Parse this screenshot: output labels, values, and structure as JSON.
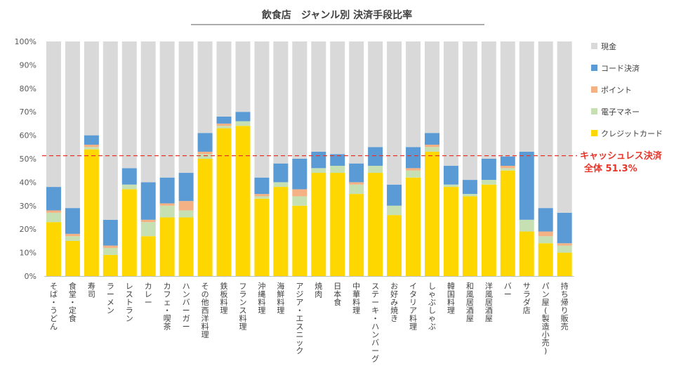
{
  "chart_data": {
    "type": "bar",
    "stacked": true,
    "title": "飲食店　ジャンル別 決済手段比率",
    "categories": [
      "そば・うどん",
      "食堂・定食",
      "寿司",
      "ラーメン",
      "レストラン",
      "カレー",
      "カフェ・喫茶",
      "ハンバーガー",
      "その他西洋料理",
      "鉄板料理",
      "フランス料理",
      "沖縄料理",
      "海鮮料理",
      "アジア・エスニック",
      "焼肉",
      "日本食",
      "中華料理",
      "ステーキ・ハンバーグ",
      "お好み焼き",
      "イタリア料理",
      "しゃぶしゃぶ",
      "韓国料理",
      "和風居酒屋",
      "洋風居酒屋",
      "バー",
      "サラダ店",
      "パン屋(製造小売)",
      "持ち帰り販売"
    ],
    "series": [
      {
        "name": "クレジットカード",
        "color": "#FFD700",
        "values": [
          23,
          15,
          54,
          9,
          37,
          17,
          25,
          25,
          50,
          63,
          64,
          33,
          38,
          30,
          44,
          44,
          35,
          44,
          26,
          42,
          53,
          38,
          34,
          39,
          45,
          19,
          14,
          10
        ]
      },
      {
        "name": "電子マネー",
        "color": "#C6E0B4",
        "values": [
          4,
          2,
          1,
          3,
          2,
          6,
          5,
          3,
          2,
          1,
          2,
          1,
          2,
          4,
          2,
          3,
          4,
          3,
          4,
          3,
          2,
          1,
          1,
          2,
          1,
          5,
          3,
          3
        ]
      },
      {
        "name": "ポイント",
        "color": "#F4B183",
        "values": [
          1,
          1,
          1,
          1,
          0,
          1,
          1,
          4,
          1,
          1,
          0,
          1,
          0,
          3,
          0,
          0,
          1,
          0,
          0,
          1,
          1,
          0,
          0,
          0,
          1,
          0,
          2,
          1
        ]
      },
      {
        "name": "コード決済",
        "color": "#5B9BD5",
        "values": [
          10,
          11,
          4,
          11,
          7,
          16,
          11,
          12,
          8,
          3,
          4,
          7,
          8,
          13,
          7,
          5,
          8,
          8,
          9,
          9,
          5,
          8,
          6,
          9,
          4,
          29,
          10,
          13
        ]
      },
      {
        "name": "現金",
        "color": "#D9D9D9",
        "values": [
          62,
          71,
          40,
          76,
          54,
          60,
          58,
          56,
          39,
          32,
          30,
          58,
          52,
          50,
          47,
          48,
          52,
          45,
          61,
          45,
          39,
          53,
          59,
          50,
          49,
          47,
          71,
          73
        ]
      }
    ],
    "legend_order": [
      "現金",
      "コード決済",
      "ポイント",
      "電子マネー",
      "クレジットカード"
    ],
    "y_ticks": [
      "0%",
      "10%",
      "20%",
      "30%",
      "40%",
      "50%",
      "60%",
      "70%",
      "80%",
      "90%",
      "100%"
    ],
    "ylim": [
      0,
      100
    ],
    "legend_position": "right",
    "grid": false,
    "reference_line": {
      "value": 51.3,
      "label_line1": "キャッシュレス決済",
      "label_line2": "全体 51.3%",
      "color": "#E8352A"
    }
  }
}
